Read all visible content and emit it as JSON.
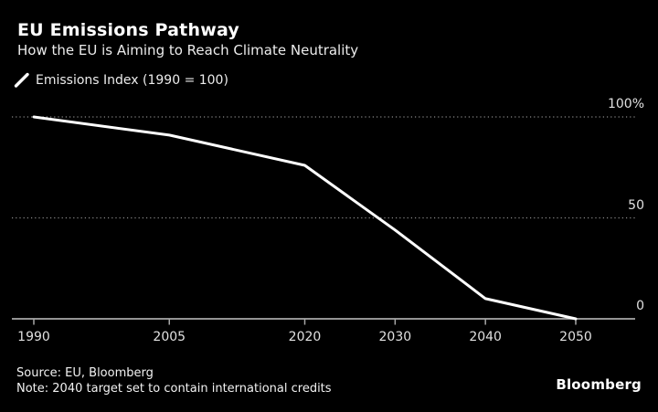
{
  "header": {
    "title": "EU Emissions Pathway",
    "subtitle": "How the EU is Aiming to Reach Climate Neutrality"
  },
  "legend": {
    "label": "Emissions Index (1990 = 100)",
    "icon": "line-slash-icon",
    "color": "#ffffff"
  },
  "chart_data": {
    "type": "line",
    "title": "EU Emissions Pathway",
    "subtitle": "How the EU is Aiming to Reach Climate Neutrality",
    "series": [
      {
        "name": "Emissions Index (1990 = 100)",
        "x": [
          1990,
          2005,
          2020,
          2030,
          2040,
          2050
        ],
        "values": [
          100,
          91,
          76,
          44,
          10,
          0
        ],
        "color": "#ffffff"
      }
    ],
    "x_tick_years": [
      1990,
      2005,
      2020,
      2030,
      2040,
      2050
    ],
    "x_tick_labels": [
      "1990",
      "2005",
      "2020",
      "2030",
      "2040",
      "2050"
    ],
    "y_tick_values": [
      100,
      50,
      0
    ],
    "y_tick_labels": [
      "100%",
      "50",
      "0"
    ],
    "xlim": [
      1987.6,
      2056.6
    ],
    "ylim": [
      0,
      100
    ],
    "grid": "horizontal-dotted",
    "legend_position": "top-left",
    "background_color": "#000000",
    "line_color": "#ffffff",
    "grid_color": "#8a8a8a",
    "axis_color": "#a8a8a8",
    "tick_label_color": "#e0e0e0"
  },
  "footer": {
    "source": "Source: EU, Bloomberg",
    "note": "Note: 2040 target set to contain international credits",
    "brand": "Bloomberg"
  }
}
